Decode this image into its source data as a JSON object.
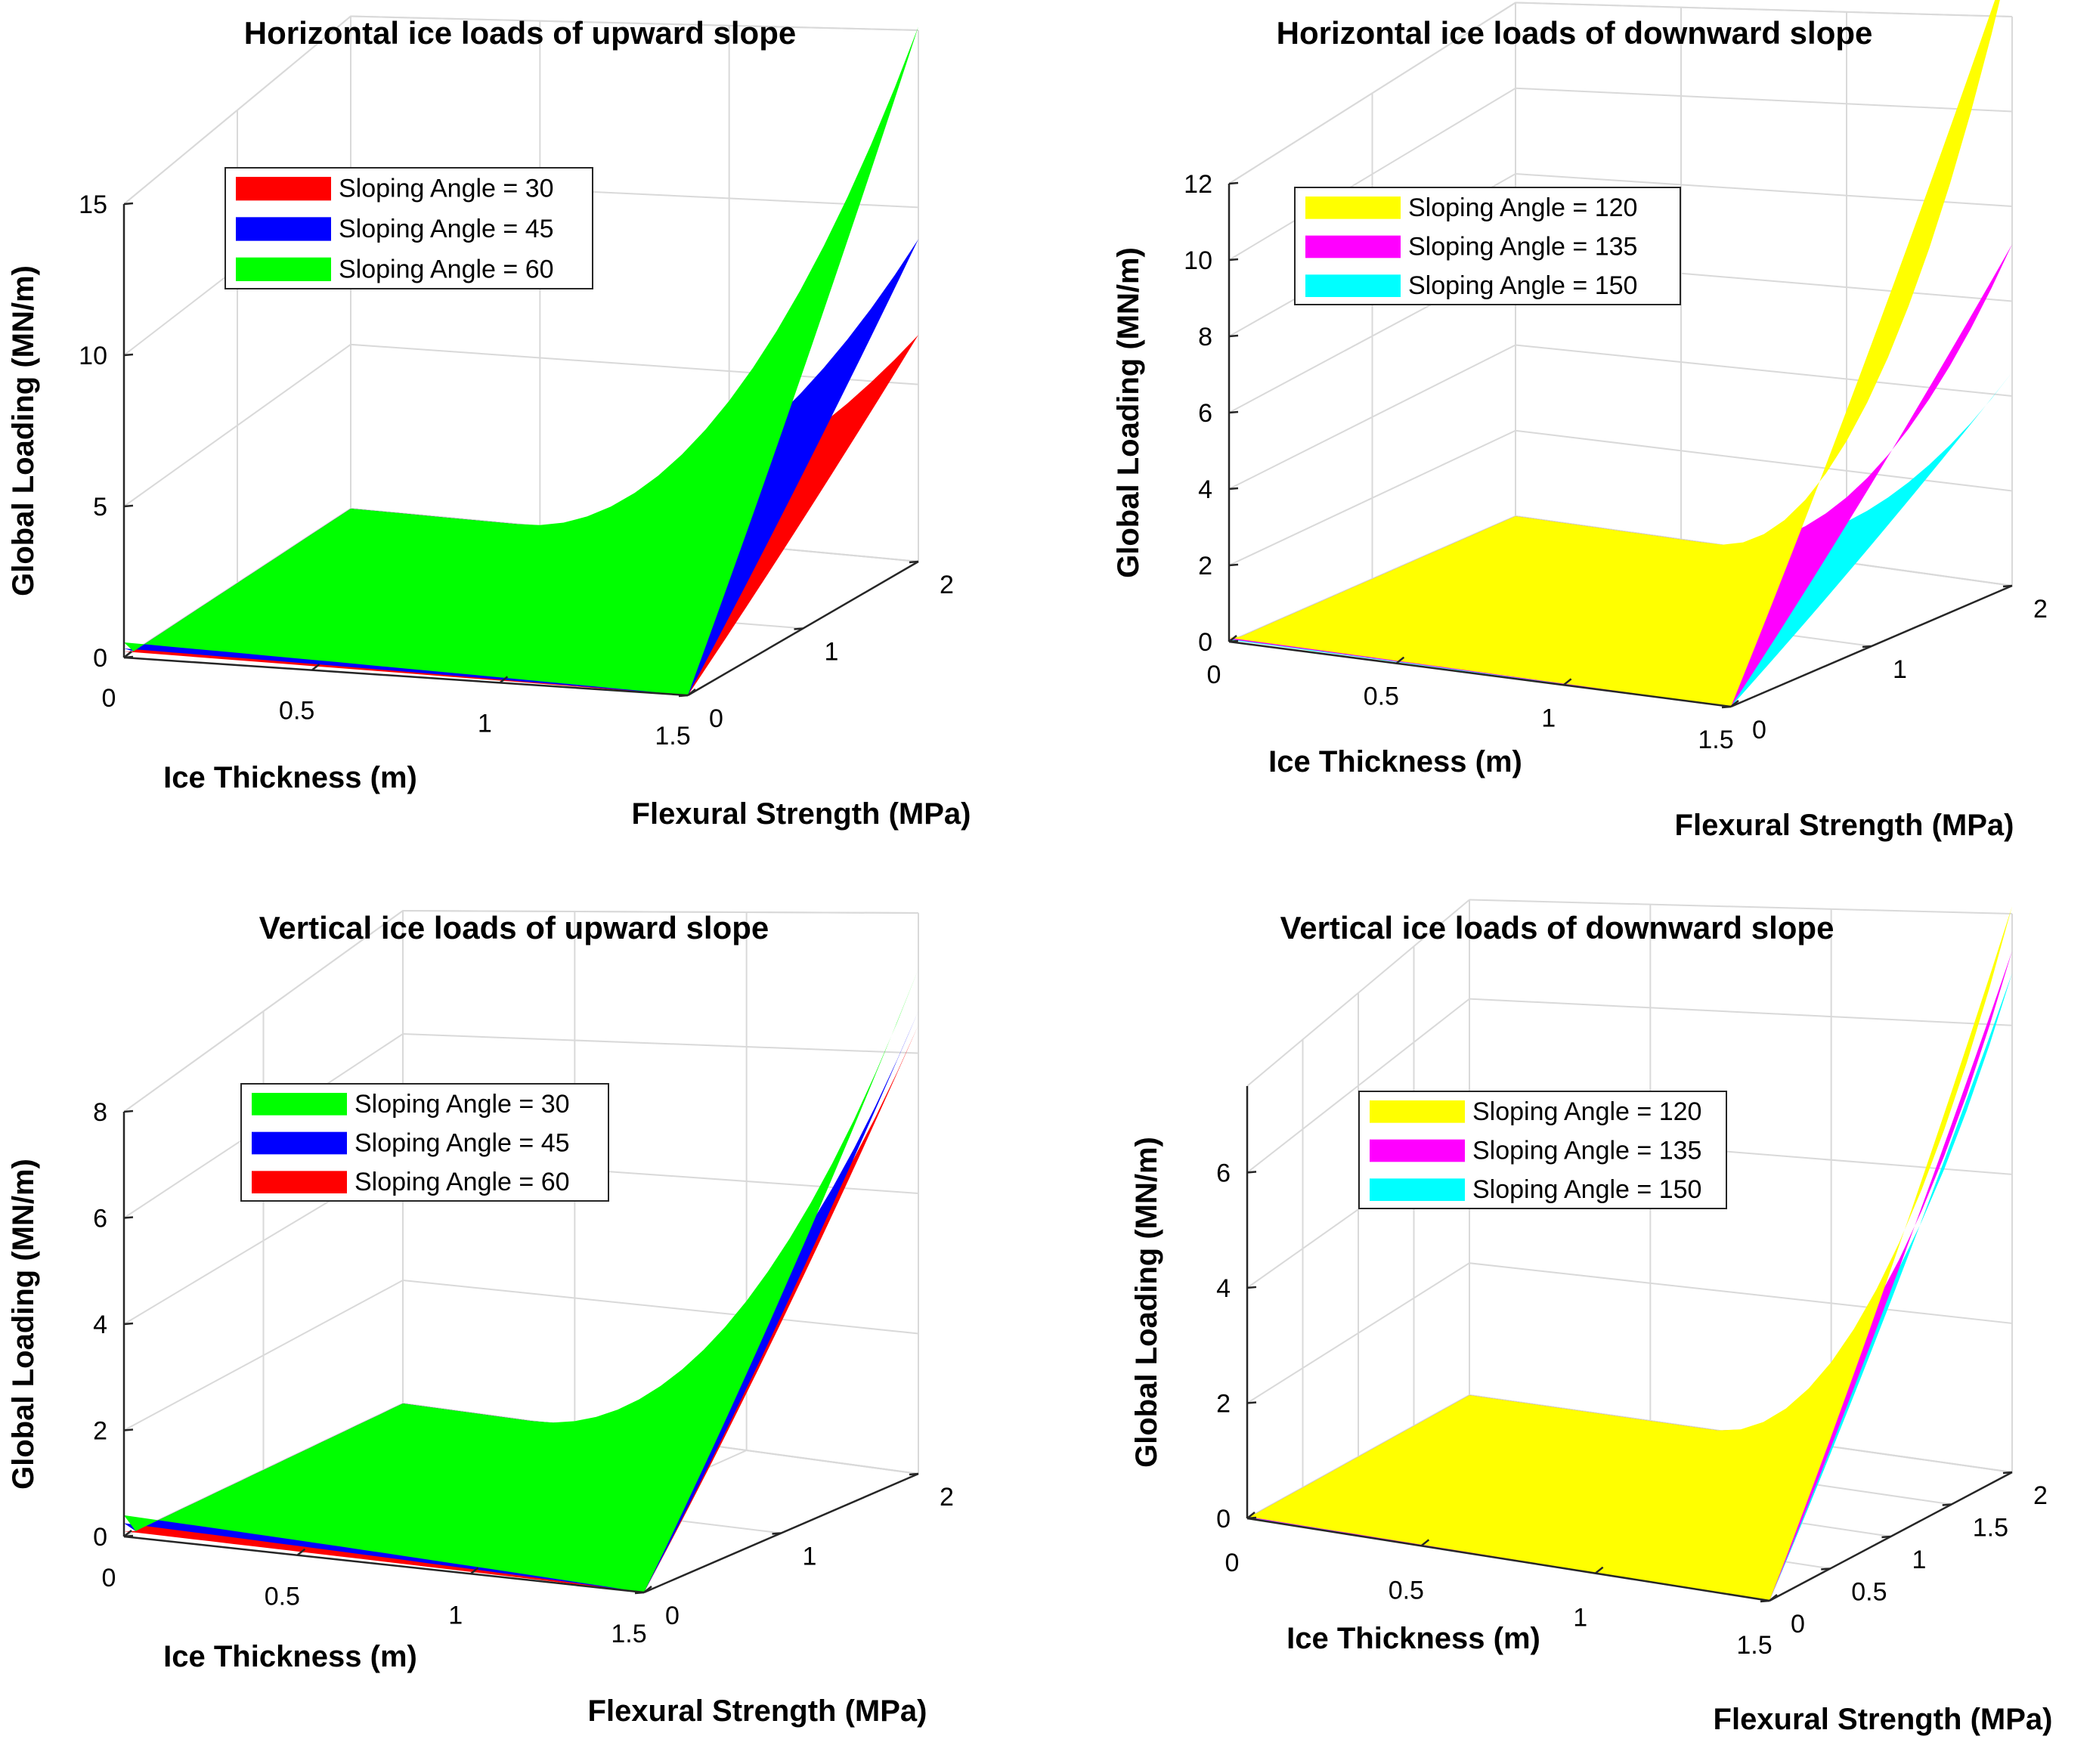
{
  "chart_data": [
    {
      "type": "surface",
      "title": "Horizontal ice loads of upward slope",
      "xlabel": "Ice Thickness (m)",
      "ylabel": "Flexural Strength (MPa)",
      "zlabel": "Global Loading (MN/m)",
      "xlim": [
        0,
        1.5
      ],
      "ylim": [
        0,
        2
      ],
      "zlim": [
        0,
        15
      ],
      "xticks": [
        "0",
        "0.5",
        "1",
        "1.5"
      ],
      "yticks": [
        "0",
        "1",
        "2"
      ],
      "zticks": [
        "0",
        "5",
        "10",
        "15"
      ],
      "series": [
        {
          "name": "Sloping Angle = 30",
          "color": "#ff0000",
          "max_value": 6.4,
          "corner_value": 0.2
        },
        {
          "name": "Sloping Angle = 45",
          "color": "#0000ff",
          "max_value": 9.1,
          "corner_value": 0.3
        },
        {
          "name": "Sloping Angle = 60",
          "color": "#00ff00",
          "max_value": 15.1,
          "corner_value": 0.5
        }
      ]
    },
    {
      "type": "surface",
      "title": "Horizontal ice loads of downward slope",
      "xlabel": "Ice Thickness (m)",
      "ylabel": "Flexural Strength (MPa)",
      "zlabel": "Global Loading (MN/m)",
      "xlim": [
        0,
        1.5
      ],
      "ylim": [
        0,
        2
      ],
      "zlim": [
        0,
        12
      ],
      "xticks": [
        "0",
        "0.5",
        "1",
        "1.5"
      ],
      "yticks": [
        "0",
        "1",
        "2"
      ],
      "zticks": [
        "0",
        "2",
        "4",
        "6",
        "8",
        "10",
        "12"
      ],
      "series": [
        {
          "name": "Sloping Angle = 120",
          "color": "#ffff00",
          "max_value": 13.4,
          "corner_value": 0.1
        },
        {
          "name": "Sloping Angle = 135",
          "color": "#ff00ff",
          "max_value": 7.2,
          "corner_value": 0.07
        },
        {
          "name": "Sloping Angle = 150",
          "color": "#00ffff",
          "max_value": 4.5,
          "corner_value": 0.05
        }
      ]
    },
    {
      "type": "surface",
      "title": "Vertical ice loads of upward slope",
      "xlabel": "Ice Thickness (m)",
      "ylabel": "Flexural Strength (MPa)",
      "zlabel": "Global Loading (MN/m)",
      "xlim": [
        0,
        1.5
      ],
      "ylim": [
        0,
        2
      ],
      "zlim": [
        0,
        8
      ],
      "xticks": [
        "0",
        "0.5",
        "1",
        "1.5"
      ],
      "yticks": [
        "0",
        "1",
        "2"
      ],
      "zticks": [
        "0",
        "2",
        "4",
        "6",
        "8"
      ],
      "series": [
        {
          "name": "Sloping Angle = 30",
          "color": "#00ff00",
          "max_value": 7.2,
          "corner_value": 0.4
        },
        {
          "name": "Sloping Angle = 45",
          "color": "#0000ff",
          "max_value": 6.6,
          "corner_value": 0.25
        },
        {
          "name": "Sloping Angle = 60",
          "color": "#ff0000",
          "max_value": 6.4,
          "corner_value": 0.1
        }
      ]
    },
    {
      "type": "surface",
      "title": "Vertical ice loads of downward slope",
      "xlabel": "Ice Thickness (m)",
      "ylabel": "Flexural Strength (MPa)",
      "zlabel": "Global Loading (MN/m)",
      "xlim": [
        0,
        1.5
      ],
      "ylim": [
        0,
        2
      ],
      "zlim": [
        0,
        7.5
      ],
      "xticks": [
        "0",
        "0.5",
        "1",
        "1.5"
      ],
      "yticks": [
        "0",
        "0.5",
        "1",
        "1.5",
        "2"
      ],
      "zticks": [
        "0",
        "2",
        "4",
        "6"
      ],
      "series": [
        {
          "name": "Sloping Angle = 120",
          "color": "#ffff00",
          "max_value": 7.6,
          "corner_value": 0.03
        },
        {
          "name": "Sloping Angle = 135",
          "color": "#ff00ff",
          "max_value": 7.0,
          "corner_value": 0.02
        },
        {
          "name": "Sloping Angle = 150",
          "color": "#00ffff",
          "max_value": 6.7,
          "corner_value": 0.01
        }
      ]
    }
  ]
}
